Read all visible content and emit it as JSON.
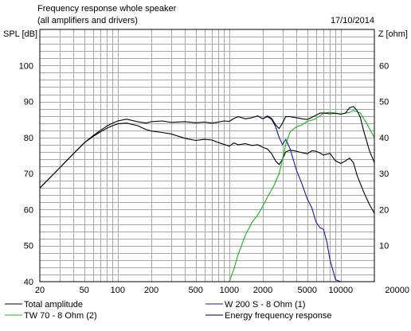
{
  "header": {
    "title": "Frequency response whole speaker",
    "subtitle": "(all amplifiers and drivers)",
    "date": "17/10/2014"
  },
  "axes": {
    "left_label": "SPL [dB]",
    "right_label": "Z [ohm]"
  },
  "legend": [
    {
      "label": "Total amplitude",
      "color": "#000000"
    },
    {
      "label": "W 200 S - 8 Ohm (1)",
      "color": "#1a1aa6"
    },
    {
      "label": "TW 70 - 8 Ohm (2)",
      "color": "#18b818"
    },
    {
      "label": "Energy frequency response",
      "color": "#000000"
    }
  ],
  "chart_data": {
    "type": "line",
    "title": "Frequency response whole speaker",
    "subtitle": "(all amplifiers and drivers)",
    "ylabel": "SPL [dB]",
    "y2label": "Z [ohm]",
    "x_scale": "log",
    "xlim": [
      20,
      20000
    ],
    "ylim": [
      40,
      110
    ],
    "y2lim": [
      0,
      70
    ],
    "x_ticks": [
      20,
      50,
      100,
      200,
      500,
      1000,
      2000,
      5000,
      10000,
      20000
    ],
    "x_tick_labels": [
      "20",
      "50",
      "100",
      "200",
      "500",
      "1000",
      "2000",
      "5000",
      "10000",
      "20000"
    ],
    "y_ticks": [
      40,
      50,
      60,
      70,
      80,
      90,
      100
    ],
    "y2_ticks": [
      10,
      20,
      30,
      40,
      50,
      60
    ],
    "grid": true,
    "legend_position": "bottom",
    "series": [
      {
        "name": "Total amplitude",
        "color": "#000000",
        "axis": "left",
        "points": [
          [
            20,
            66
          ],
          [
            30,
            71.5
          ],
          [
            40,
            75.5
          ],
          [
            50,
            78.5
          ],
          [
            60,
            80.3
          ],
          [
            70,
            81.6
          ],
          [
            80,
            82.6
          ],
          [
            90,
            83.3
          ],
          [
            100,
            83.8
          ],
          [
            120,
            84
          ],
          [
            150,
            83.3
          ],
          [
            180,
            82.2
          ],
          [
            200,
            81.8
          ],
          [
            250,
            81.4
          ],
          [
            300,
            81
          ],
          [
            400,
            79.8
          ],
          [
            500,
            79.2
          ],
          [
            600,
            79.5
          ],
          [
            700,
            79.3
          ],
          [
            800,
            78.6
          ],
          [
            1000,
            77.6
          ],
          [
            1100,
            78.5
          ],
          [
            1200,
            78
          ],
          [
            1400,
            78.3
          ],
          [
            1600,
            77.8
          ],
          [
            1800,
            78
          ],
          [
            2000,
            77.3
          ],
          [
            2200,
            76.8
          ],
          [
            2400,
            75.5
          ],
          [
            2600,
            73.5
          ],
          [
            2800,
            72.5
          ],
          [
            3000,
            74
          ],
          [
            3200,
            76
          ],
          [
            3500,
            76.5
          ],
          [
            4000,
            76.2
          ],
          [
            4500,
            75.8
          ],
          [
            5000,
            75.5
          ],
          [
            5500,
            76.3
          ],
          [
            6000,
            76.2
          ],
          [
            6500,
            75.7
          ],
          [
            7000,
            75.1
          ],
          [
            7500,
            75.4
          ],
          [
            8000,
            75.6
          ],
          [
            9000,
            73.5
          ],
          [
            10000,
            72.8
          ],
          [
            11000,
            73.5
          ],
          [
            12000,
            74.3
          ],
          [
            13000,
            73
          ],
          [
            14000,
            69.5
          ],
          [
            16000,
            65
          ],
          [
            18000,
            61.5
          ],
          [
            20000,
            59
          ]
        ]
      },
      {
        "name": "W 200 S - 8 Ohm (1)",
        "color": "#1a1aa6",
        "axis": "left",
        "points": [
          [
            1800,
            86
          ],
          [
            2000,
            85.2
          ],
          [
            2200,
            85.8
          ],
          [
            2400,
            85
          ],
          [
            2600,
            83
          ],
          [
            2800,
            80
          ],
          [
            3000,
            78
          ],
          [
            3200,
            79.5
          ],
          [
            3500,
            77
          ],
          [
            4000,
            71
          ],
          [
            4500,
            67
          ],
          [
            5000,
            63
          ],
          [
            5500,
            60.5
          ],
          [
            6000,
            56.5
          ],
          [
            6500,
            55
          ],
          [
            7000,
            54.5
          ],
          [
            7500,
            51
          ],
          [
            8000,
            46
          ],
          [
            9000,
            40.5
          ],
          [
            10000,
            40
          ],
          [
            20000,
            40
          ]
        ]
      },
      {
        "name": "TW 70 - 8 Ohm (2)",
        "color": "#18b818",
        "axis": "left",
        "points": [
          [
            20,
            40
          ],
          [
            1000,
            40
          ],
          [
            1100,
            43.5
          ],
          [
            1200,
            47.5
          ],
          [
            1400,
            53
          ],
          [
            1600,
            56.5
          ],
          [
            1800,
            58.5
          ],
          [
            2000,
            61
          ],
          [
            2200,
            63.5
          ],
          [
            2500,
            66.5
          ],
          [
            2800,
            70
          ],
          [
            3000,
            74
          ],
          [
            3200,
            78
          ],
          [
            3500,
            81.5
          ],
          [
            4000,
            83
          ],
          [
            4500,
            83.5
          ],
          [
            5000,
            84.5
          ],
          [
            5500,
            84.8
          ],
          [
            6000,
            85.3
          ],
          [
            6500,
            86
          ],
          [
            7000,
            86.8
          ],
          [
            8000,
            87
          ],
          [
            9000,
            86.8
          ],
          [
            10000,
            86.5
          ],
          [
            12000,
            87
          ],
          [
            13000,
            87.5
          ],
          [
            15000,
            86.8
          ],
          [
            17000,
            84
          ],
          [
            20000,
            80
          ]
        ]
      },
      {
        "name": "Energy frequency response",
        "color": "#000000",
        "axis": "left",
        "points": [
          [
            20,
            66
          ],
          [
            30,
            71.5
          ],
          [
            40,
            75.5
          ],
          [
            50,
            78.5
          ],
          [
            60,
            80.5
          ],
          [
            70,
            82
          ],
          [
            80,
            83.2
          ],
          [
            90,
            84
          ],
          [
            100,
            84.6
          ],
          [
            120,
            85.1
          ],
          [
            150,
            84.4
          ],
          [
            180,
            84
          ],
          [
            200,
            84.4
          ],
          [
            250,
            84.6
          ],
          [
            300,
            84.2
          ],
          [
            400,
            84.4
          ],
          [
            500,
            84.1
          ],
          [
            600,
            84.3
          ],
          [
            700,
            84
          ],
          [
            800,
            84.3
          ],
          [
            900,
            84.6
          ],
          [
            1000,
            84.5
          ],
          [
            1100,
            85.3
          ],
          [
            1200,
            85.8
          ],
          [
            1400,
            85.2
          ],
          [
            1600,
            85.5
          ],
          [
            1800,
            86
          ],
          [
            2000,
            85.2
          ],
          [
            2200,
            86
          ],
          [
            2400,
            85.3
          ],
          [
            2600,
            83.5
          ],
          [
            2800,
            82.5
          ],
          [
            3000,
            84
          ],
          [
            3200,
            85.8
          ],
          [
            3500,
            85.8
          ],
          [
            4000,
            85.5
          ],
          [
            4500,
            85.2
          ],
          [
            5000,
            85
          ],
          [
            5500,
            85.6
          ],
          [
            6000,
            86.2
          ],
          [
            6500,
            86.8
          ],
          [
            7000,
            86.8
          ],
          [
            8000,
            86.6
          ],
          [
            9000,
            86.7
          ],
          [
            10000,
            86.5
          ],
          [
            11000,
            86.8
          ],
          [
            12000,
            88.3
          ],
          [
            13000,
            88.6
          ],
          [
            14000,
            87.5
          ],
          [
            15000,
            85.5
          ],
          [
            16000,
            82
          ],
          [
            18000,
            76.5
          ],
          [
            20000,
            73
          ]
        ]
      }
    ]
  }
}
